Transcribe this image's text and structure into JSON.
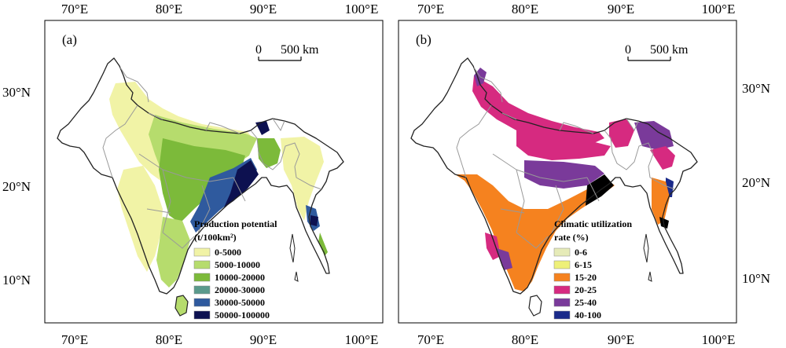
{
  "axes": {
    "top_ticks": [
      "70°E",
      "80°E",
      "90°E",
      "100°E"
    ],
    "bottom_ticks": [
      "70°E",
      "80°E",
      "90°E",
      "100°E"
    ],
    "lat_ticks": [
      "30°N",
      "20°N",
      "10°N"
    ]
  },
  "scale_bar": {
    "zero": "0",
    "distance": "500 km"
  },
  "panels": [
    {
      "label": "(a)",
      "legend_title_1": "Production potential",
      "legend_title_2": "(t/100km²)",
      "legend": [
        {
          "label": "0-5000",
          "color": "#f1f3a6"
        },
        {
          "label": "5000-10000",
          "color": "#b6dc6d"
        },
        {
          "label": "10000-20000",
          "color": "#7cba3a"
        },
        {
          "label": "20000-30000",
          "color": "#5a9a8c"
        },
        {
          "label": "30000-50000",
          "color": "#2f5a9e"
        },
        {
          "label": "50000-100000",
          "color": "#0d1150"
        }
      ]
    },
    {
      "label": "(b)",
      "legend_title_1": "Climatic utilization",
      "legend_title_2": "rate (%)",
      "legend": [
        {
          "label": "0-6",
          "color": "#e6ebb8"
        },
        {
          "label": "6-15",
          "color": "#eef078"
        },
        {
          "label": "15-20",
          "color": "#f5821f"
        },
        {
          "label": "20-25",
          "color": "#d62a80"
        },
        {
          "label": "25-40",
          "color": "#7a3a9a"
        },
        {
          "label": "40-100",
          "color": "#1a2a8a"
        }
      ]
    }
  ]
}
